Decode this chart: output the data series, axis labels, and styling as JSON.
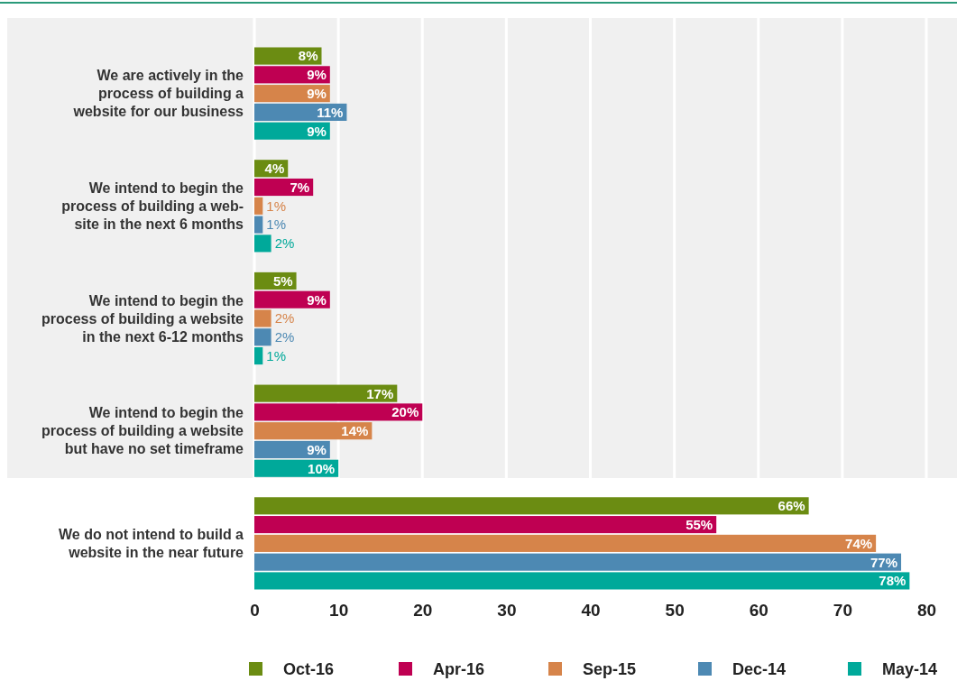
{
  "chart_data": {
    "type": "bar",
    "orientation": "horizontal",
    "categories": [
      "We are actively in the\nprocess of building a\nwebsite for our business",
      "We intend to begin the\nprocess of building a web-\nsite in the next 6 months",
      "We intend to begin the\nprocess of building a website\nin the next 6-12 months",
      "We intend to begin the\nprocess of building a website\nbut have no set timeframe",
      "We do not intend to build a\nwebsite in the near future"
    ],
    "series": [
      {
        "name": "Oct-16",
        "color": "#6b8c12",
        "values": [
          8,
          4,
          5,
          17,
          66
        ],
        "value_labels": [
          "8%",
          "4%",
          "5%",
          "17%",
          "66%"
        ]
      },
      {
        "name": "Apr-16",
        "color": "#bf0052",
        "values": [
          9,
          7,
          9,
          20,
          55
        ],
        "value_labels": [
          "9%",
          "7%",
          "9%",
          "20%",
          "55%"
        ]
      },
      {
        "name": "Sep-15",
        "color": "#d6844a",
        "values": [
          9,
          1,
          2,
          14,
          74
        ],
        "value_labels": [
          "9%",
          "1%",
          "2%",
          "14%",
          "74%"
        ]
      },
      {
        "name": "Dec-14",
        "color": "#4d89b3",
        "values": [
          11,
          1,
          2,
          9,
          77
        ],
        "value_labels": [
          "11%",
          "1%",
          "2%",
          "9%",
          "77%"
        ]
      },
      {
        "name": "May-14",
        "color": "#00a99a",
        "values": [
          9,
          2,
          1,
          10,
          78
        ],
        "value_labels": [
          "9%",
          "2%",
          "1%",
          "10%",
          "78%"
        ]
      }
    ],
    "xlim": [
      0,
      80
    ],
    "xticks": [
      0,
      10,
      20,
      30,
      40,
      50,
      60,
      70,
      80
    ],
    "grid": "x",
    "legend": "bottom"
  }
}
